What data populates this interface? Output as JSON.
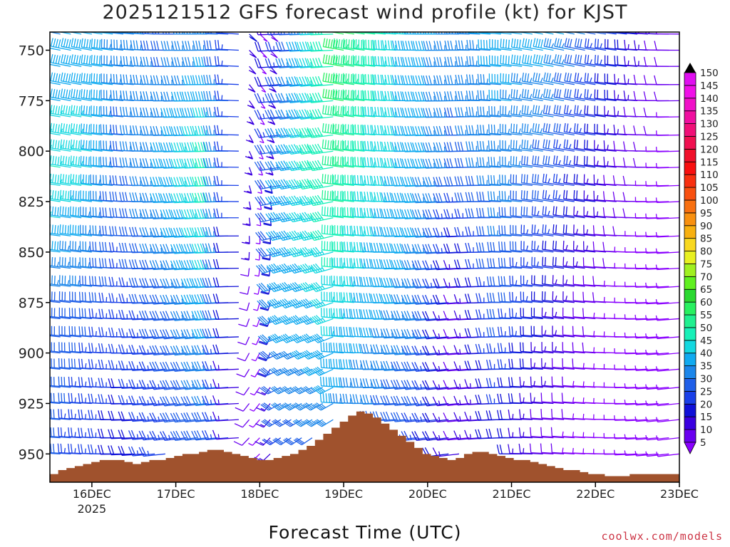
{
  "chart_data": {
    "type": "wind_barb_profile",
    "title": "2025121512 GFS forecast wind profile (kt) for KJST",
    "xlabel": "Forecast Time (UTC)",
    "x_ticks": [
      "16DEC",
      "17DEC",
      "18DEC",
      "19DEC",
      "20DEC",
      "21DEC",
      "22DEC",
      "23DEC"
    ],
    "x_tick_year": "2025",
    "x_range_days": [
      15.5,
      23.0
    ],
    "y_ticks": [
      750,
      775,
      800,
      825,
      850,
      875,
      900,
      925,
      950
    ],
    "y_range_hPa": [
      741,
      964
    ],
    "pressure_levels_hPa": [
      742,
      750,
      758,
      767,
      775,
      783,
      792,
      800,
      808,
      817,
      825,
      833,
      842,
      850,
      858,
      867,
      875,
      883,
      892,
      900,
      908,
      917,
      925,
      933,
      942,
      950
    ],
    "time_step_hours": 3,
    "colorbar": {
      "unit": "kt",
      "levels": [
        5,
        10,
        15,
        20,
        25,
        30,
        35,
        40,
        45,
        50,
        55,
        60,
        65,
        70,
        75,
        80,
        85,
        90,
        95,
        100,
        105,
        110,
        115,
        120,
        125,
        130,
        135,
        140,
        145,
        150
      ],
      "colors": [
        "#8a00ff",
        "#6a00f0",
        "#3a00e0",
        "#1010d8",
        "#1a40e8",
        "#1f5fe8",
        "#1b86ea",
        "#10aaf0",
        "#14d8e0",
        "#18f0b8",
        "#20f090",
        "#28f060",
        "#2ad830",
        "#60f020",
        "#a0f020",
        "#e8f020",
        "#f8d820",
        "#f8b010",
        "#f89010",
        "#f87010",
        "#f85010",
        "#f83010",
        "#f81010",
        "#f0102a",
        "#f01050",
        "#f01078",
        "#f010a0",
        "#f010c8",
        "#f010e8",
        "#e010f0"
      ]
    },
    "terrain": {
      "color": "#a0522d",
      "surface_pressure_hPa": [
        960,
        958,
        957,
        956,
        955,
        954,
        953,
        953,
        953,
        954,
        955,
        954,
        953,
        953,
        952,
        951,
        950,
        950,
        949,
        948,
        948,
        949,
        950,
        951,
        952,
        953,
        953,
        952,
        951,
        950,
        948,
        946,
        943,
        940,
        937,
        934,
        931,
        929,
        930,
        932,
        935,
        938,
        941,
        944,
        947,
        950,
        951,
        952,
        953,
        952,
        950,
        949,
        949,
        950,
        951,
        952,
        953,
        953,
        954,
        955,
        956,
        957,
        958,
        958,
        959,
        960,
        960,
        961,
        961,
        961,
        960,
        960,
        960,
        960,
        960,
        960
      ]
    },
    "profiles": [
      {
        "day": 15.5,
        "speed_kt": [
          35,
          50,
          30,
          30
        ]
      },
      {
        "day": 16.0,
        "speed_kt": [
          40,
          45,
          30,
          25
        ]
      },
      {
        "day": 16.5,
        "speed_kt": [
          35,
          30,
          25,
          20
        ]
      },
      {
        "day": 17.0,
        "speed_kt": [
          30,
          40,
          30,
          25
        ]
      },
      {
        "day": 17.5,
        "speed_kt": [
          35,
          50,
          40,
          30
        ]
      },
      {
        "day": 17.8,
        "speed_kt": [
          25,
          20,
          15,
          10
        ]
      },
      {
        "day": 18.0,
        "speed_kt": [
          5,
          5,
          5,
          5
        ]
      },
      {
        "day": 18.3,
        "speed_kt": [
          20,
          35,
          40,
          30
        ]
      },
      {
        "day": 18.6,
        "speed_kt": [
          35,
          45,
          40,
          30
        ]
      },
      {
        "day": 19.0,
        "speed_kt": [
          60,
          55,
          45,
          35
        ]
      },
      {
        "day": 19.5,
        "speed_kt": [
          50,
          45,
          40,
          30
        ]
      },
      {
        "day": 20.0,
        "speed_kt": [
          40,
          40,
          35,
          25
        ]
      },
      {
        "day": 20.5,
        "speed_kt": [
          35,
          30,
          10,
          10
        ]
      },
      {
        "day": 21.0,
        "speed_kt": [
          40,
          35,
          30,
          20
        ]
      },
      {
        "day": 21.5,
        "speed_kt": [
          40,
          30,
          20,
          10
        ]
      },
      {
        "day": 22.0,
        "speed_kt": [
          30,
          20,
          10,
          5
        ]
      },
      {
        "day": 22.5,
        "speed_kt": [
          20,
          10,
          5,
          5
        ]
      },
      {
        "day": 23.0,
        "speed_kt": [
          10,
          5,
          5,
          5
        ]
      }
    ]
  },
  "credit": "coolwx.com/models"
}
